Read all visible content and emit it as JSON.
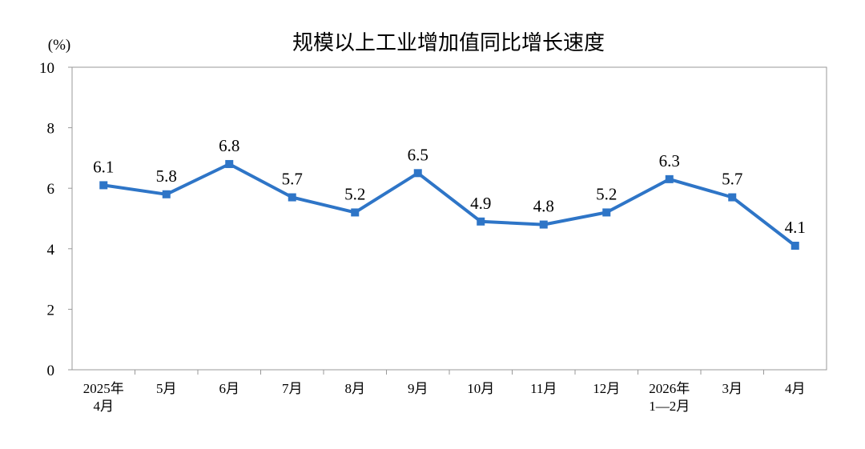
{
  "chart_data": {
    "type": "line",
    "title": "规模以上工业增加值同比增长速度",
    "ylabel": "(%)",
    "xlabel": "",
    "ylim": [
      0,
      10
    ],
    "yticks": [
      0,
      2,
      4,
      6,
      8,
      10
    ],
    "grid": false,
    "legend": "none",
    "categories": [
      "2025年\n4月",
      "5月",
      "6月",
      "7月",
      "8月",
      "9月",
      "10月",
      "11月",
      "12月",
      "2026年\n1—2月",
      "3月",
      "4月"
    ],
    "series": [
      {
        "values": [
          6.1,
          5.8,
          6.8,
          5.7,
          5.2,
          6.5,
          4.9,
          4.8,
          5.2,
          6.3,
          5.7,
          4.1
        ],
        "labels": [
          "6.1",
          "5.8",
          "6.8",
          "5.7",
          "5.2",
          "6.5",
          "4.9",
          "4.8",
          "5.2",
          "6.3",
          "5.7",
          "4.1"
        ],
        "color": "#2e75c7",
        "marker": "square"
      }
    ]
  }
}
